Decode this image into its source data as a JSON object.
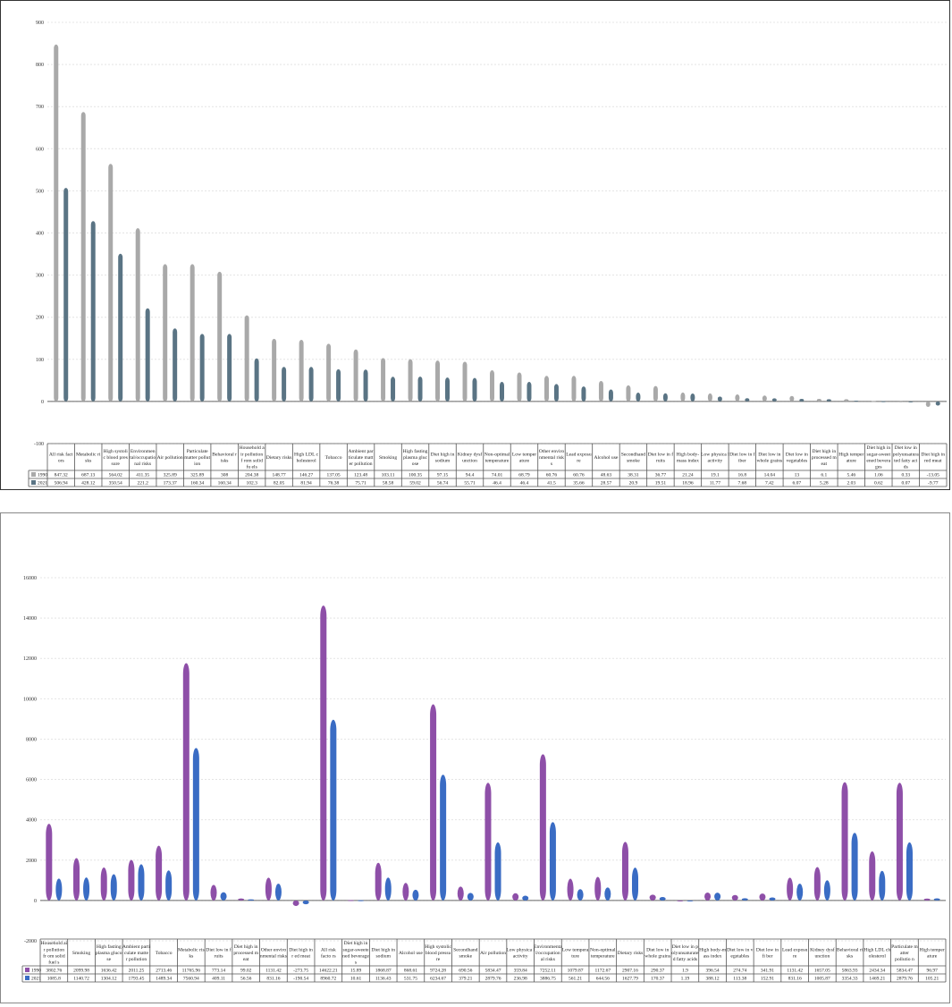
{
  "chart_data": [
    {
      "type": "bar",
      "title": "",
      "xlabel": "",
      "ylabel": "",
      "ylim": [
        -100,
        900
      ],
      "yticks": [
        -100,
        0,
        100,
        200,
        300,
        400,
        500,
        600,
        700,
        800,
        900
      ],
      "grid": true,
      "legend": "data-table-left",
      "categories": [
        "All risk factors",
        "Metabolic risks",
        "High systolic blood pressure",
        "Environmental/occupational risks",
        "Air pollution",
        "Particulate matter pollution",
        "Behavioral risks",
        "Household air pollution from solid fuels",
        "Dietary risks",
        "High LDL cholesterol",
        "Tobacco",
        "Ambient particulate matter pollution",
        "Smoking",
        "High fasting plasma glucose",
        "Diet high in sodium",
        "Kidney dysfunction",
        "Non-optimal temperature",
        "Low temperature",
        "Other environmental risks",
        "Lead exposure",
        "Alcohol use",
        "Secondhand smoke",
        "Diet low in fruits",
        "High body-mass index",
        "Low physical activity",
        "Diet low in fiber",
        "Diet low in whole grains",
        "Diet low in vegetables",
        "Diet high in processed meat",
        "High temperature",
        "Diet high in sugar-sweetened beverages",
        "Diet low in polyunsaturated fatty acids",
        "Diet high in red meat"
      ],
      "category_labels": [
        "All risk fact ors",
        "Metabolic ri sks",
        "High systoli c blood pres sure",
        "Environmen tal/occupatio nal risks",
        "Air pollution",
        "Particulate matter pollut ion",
        "Behavioral r isks",
        "Household a ir pollution f rom solid fu els",
        "Dietary risks",
        "High LDL c holesterol",
        "Tobacco",
        "Ambient par ticulate matt er pollution",
        "Smoking",
        "High fasting plasma gluc ose",
        "Diet high in sodium",
        "Kidney dysf unction",
        "Non-optimal temperature",
        "Low temper ature",
        "Other enviro nmental risk s",
        "Lead exposu re",
        "Alcohol use",
        "Secondhand smoke",
        "Diet low in f ruits",
        "High body- mass index",
        "Low physica l activity",
        "Diet low in f iber",
        "Diet low in whole grains",
        "Diet low in vegetables",
        "Diet high in processed m eat",
        "High temper ature",
        "Diet high in sugar-sweet ened bevera ges",
        "Diet low in polyunsatura ted fatty aci ds",
        "Diet high in red meat"
      ],
      "series": [
        {
          "name": "1990",
          "color": "#a9a9a9",
          "values": [
            847.32,
            687.13,
            564.02,
            411.35,
            325.89,
            325.89,
            308,
            204.38,
            148.77,
            146.27,
            137.05,
            123.48,
            103.11,
            100.35,
            97.15,
            94.4,
            74.01,
            68.79,
            60.76,
            60.76,
            48.63,
            38.31,
            36.77,
            21.24,
            19.1,
            16.8,
            14.04,
            13,
            6.1,
            5.46,
            1.06,
            0.33,
            -13.05
          ]
        },
        {
          "name": "2021",
          "color": "#5a7484",
          "values": [
            506.94,
            428.12,
            350.54,
            221.2,
            173.37,
            160.34,
            160.34,
            102.3,
            82.05,
            81.94,
            76.38,
            75.71,
            58.58,
            59.02,
            56.74,
            55.71,
            46.4,
            46.4,
            41.5,
            35.66,
            28.57,
            20.9,
            19.51,
            18.96,
            11.77,
            7.68,
            7.42,
            6.07,
            5.28,
            2.03,
            0.62,
            0.07,
            -9.77
          ]
        }
      ],
      "table_values": {
        "1990": [
          "847.32",
          "687.13",
          "564.02",
          "411.35",
          "325.89",
          "325.89",
          "308",
          "204.38",
          "148.77",
          "146.27",
          "137.05",
          "123.48",
          "103.11",
          "100.35",
          "97.15",
          "94.4",
          "74.01",
          "68.79",
          "60.76",
          "60.76",
          "48.63",
          "38.31",
          "36.77",
          "21.24",
          "19.1",
          "16.8",
          "14.04",
          "13",
          "6.1",
          "5.46",
          "1.06",
          "0.33",
          "-13.05"
        ],
        "2021": [
          "506.94",
          "428.12",
          "350.54",
          "221.2",
          "173.37",
          "160.34",
          "160.34",
          "102.3",
          "82.05",
          "81.94",
          "76.38",
          "75.71",
          "58.58",
          "59.02",
          "56.74",
          "55.71",
          "46.4",
          "46.4",
          "41.5",
          "35.66",
          "28.57",
          "20.9",
          "19.51",
          "18.96",
          "11.77",
          "7.68",
          "7.42",
          "6.07",
          "5.28",
          "2.03",
          "0.62",
          "0.07",
          "-9.77"
        ]
      }
    },
    {
      "type": "bar",
      "title": "",
      "xlabel": "",
      "ylabel": "",
      "ylim": [
        -2000,
        16000
      ],
      "yticks": [
        -2000,
        0,
        2000,
        4000,
        6000,
        8000,
        10000,
        12000,
        14000,
        16000
      ],
      "grid": true,
      "legend": "data-table-left",
      "categories": [
        "Household air pollution from solid fuels",
        "Smoking",
        "High fasting plasma glucose",
        "Ambient particulate matter pollution",
        "Tobacco",
        "Metabolic risks",
        "Diet low in fruits",
        "Diet high in processed meat",
        "Other environmental risks",
        "Diet high in red meat",
        "All risk factors",
        "Diet high in sugar-sweetened beverages",
        "Diet high in sodium",
        "Alcohol use",
        "High systolic blood pressure",
        "Secondhand smoke",
        "Air pollution",
        "Low physical activity",
        "Environmental/occupational risks",
        "Low temperature",
        "Non-optimal temperature",
        "Dietary risks",
        "Diet low in whole grains",
        "Diet low in polyunsaturated fatty acids",
        "High body-mass index",
        "Diet low in vegetables",
        "Diet low in fiber",
        "Lead exposure",
        "Kidney dysfunction",
        "Behavioral risks",
        "High LDL cholesterol",
        "Particulate matter pollution",
        "High temperature"
      ],
      "category_labels": [
        "Household ai r pollution fr om solid fuel s",
        "Smoking",
        "High fasting plasma gluco se",
        "Ambient parti culate matte r pollution",
        "Tobacco",
        "Metabolic ris ks",
        "Diet low in f ruits",
        "Diet high in processed m eat",
        "Other enviro nmental risks",
        "Diet high in r ed meat",
        "All risk facto rs",
        "Diet high in sugar-sweete ned beverage s",
        "Diet high in sodium",
        "Alcohol use",
        "High systolic blood pressu re",
        "Secondhand smoke",
        "Air pollution",
        "Low physica l activity",
        "Environmenta l/occupation al risks",
        "Low tempera ture",
        "Non-optimal temperature",
        "Dietary risks",
        "Diet low in whole grains",
        "Diet low in p olyunsaturate d fatty acids",
        "High body-m ass index",
        "Diet low in v egetables",
        "Diet low in fi ber",
        "Lead exposu re",
        "Kidney dysf unction",
        "Behavioral ri sks",
        "High LDL ch olesterol",
        "Particulate m atter pollutio n",
        "High temper ature"
      ],
      "series": [
        {
          "name": "1990",
          "color": "#8e4fa8",
          "values": [
            3802.76,
            2099.98,
            1636.42,
            2011.25,
            2713.46,
            11765.96,
            773.14,
            99.02,
            1131.42,
            -273.75,
            14622.21,
            15.89,
            1868.87,
            868.61,
            9724.28,
            690.56,
            5834.47,
            359.84,
            7252.11,
            1079.87,
            1172.67,
            2907.16,
            290.37,
            1.9,
            396.54,
            274.74,
            341.91,
            1131.42,
            1657.05,
            5863.93,
            2434.34,
            5834.47,
            96.97
          ]
        },
        {
          "name": "2021",
          "color": "#3a6cc4",
          "values": [
            1085.8,
            1140.72,
            1304.12,
            1793.45,
            1489.34,
            7560.94,
            409.11,
            56.56,
            831.16,
            -190.54,
            8960.72,
            10.61,
            1136.43,
            531.75,
            6234.67,
            379.21,
            2879.76,
            236.98,
            3886.75,
            561.21,
            644.56,
            1627.79,
            170.37,
            1.19,
            388.12,
            113.38,
            152.91,
            831.16,
            1005.87,
            3354.33,
            1469.21,
            2879.76,
            105.21
          ]
        }
      ],
      "table_values": {
        "1990": [
          "3802.76",
          "2099.98",
          "1636.42",
          "2011.25",
          "2713.46",
          "11765.96",
          "773.14",
          "99.02",
          "1131.42",
          "-273.75",
          "14622.21",
          "15.89",
          "1868.87",
          "868.61",
          "9724.28",
          "690.56",
          "5834.47",
          "359.84",
          "7252.11",
          "1079.87",
          "1172.67",
          "2907.16",
          "290.37",
          "1.9",
          "396.54",
          "274.74",
          "341.91",
          "1131.42",
          "1657.05",
          "5863.93",
          "2434.34",
          "5834.47",
          "96.97"
        ],
        "2021": [
          "1085.8",
          "1140.72",
          "1304.12",
          "1793.45",
          "1489.34",
          "7560.94",
          "409.11",
          "56.56",
          "831.16",
          "-190.54",
          "8960.72",
          "10.61",
          "1136.43",
          "531.75",
          "6234.67",
          "379.21",
          "2879.76",
          "236.98",
          "3886.75",
          "561.21",
          "644.56",
          "1627.79",
          "170.37",
          "1.19",
          "388.12",
          "113.38",
          "152.91",
          "831.16",
          "1005.87",
          "3354.33",
          "1469.21",
          "2879.76",
          "105.21"
        ]
      }
    }
  ]
}
